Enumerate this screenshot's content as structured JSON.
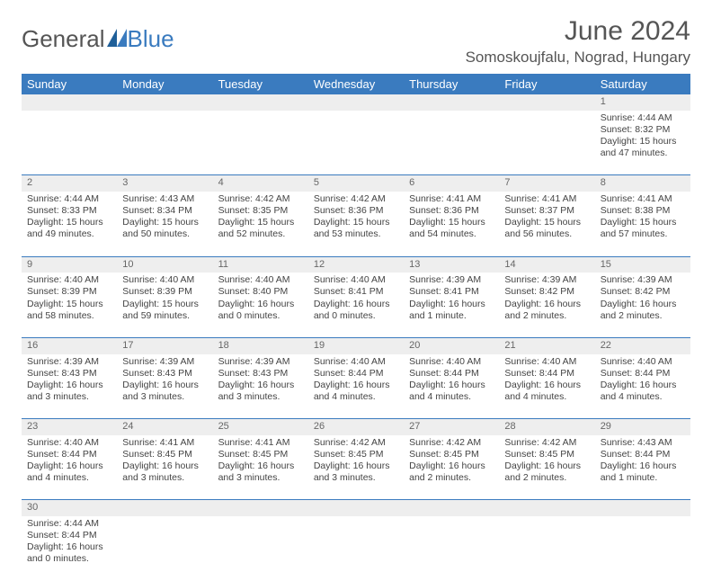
{
  "header": {
    "logo_part1": "General",
    "logo_part2": "Blue",
    "month_title": "June 2024",
    "location": "Somoskoujfalu, Nograd, Hungary"
  },
  "colors": {
    "header_bg": "#3a7bbf",
    "header_text": "#ffffff",
    "daynum_bg": "#eeeeee",
    "cell_border": "#3a7bbf",
    "body_text": "#444444",
    "title_text": "#555555"
  },
  "calendar": {
    "day_headers": [
      "Sunday",
      "Monday",
      "Tuesday",
      "Wednesday",
      "Thursday",
      "Friday",
      "Saturday"
    ],
    "weeks": [
      [
        null,
        null,
        null,
        null,
        null,
        null,
        {
          "n": "1",
          "sr": "4:44 AM",
          "ss": "8:32 PM",
          "dl": "15 hours and 47 minutes."
        }
      ],
      [
        {
          "n": "2",
          "sr": "4:44 AM",
          "ss": "8:33 PM",
          "dl": "15 hours and 49 minutes."
        },
        {
          "n": "3",
          "sr": "4:43 AM",
          "ss": "8:34 PM",
          "dl": "15 hours and 50 minutes."
        },
        {
          "n": "4",
          "sr": "4:42 AM",
          "ss": "8:35 PM",
          "dl": "15 hours and 52 minutes."
        },
        {
          "n": "5",
          "sr": "4:42 AM",
          "ss": "8:36 PM",
          "dl": "15 hours and 53 minutes."
        },
        {
          "n": "6",
          "sr": "4:41 AM",
          "ss": "8:36 PM",
          "dl": "15 hours and 54 minutes."
        },
        {
          "n": "7",
          "sr": "4:41 AM",
          "ss": "8:37 PM",
          "dl": "15 hours and 56 minutes."
        },
        {
          "n": "8",
          "sr": "4:41 AM",
          "ss": "8:38 PM",
          "dl": "15 hours and 57 minutes."
        }
      ],
      [
        {
          "n": "9",
          "sr": "4:40 AM",
          "ss": "8:39 PM",
          "dl": "15 hours and 58 minutes."
        },
        {
          "n": "10",
          "sr": "4:40 AM",
          "ss": "8:39 PM",
          "dl": "15 hours and 59 minutes."
        },
        {
          "n": "11",
          "sr": "4:40 AM",
          "ss": "8:40 PM",
          "dl": "16 hours and 0 minutes."
        },
        {
          "n": "12",
          "sr": "4:40 AM",
          "ss": "8:41 PM",
          "dl": "16 hours and 0 minutes."
        },
        {
          "n": "13",
          "sr": "4:39 AM",
          "ss": "8:41 PM",
          "dl": "16 hours and 1 minute."
        },
        {
          "n": "14",
          "sr": "4:39 AM",
          "ss": "8:42 PM",
          "dl": "16 hours and 2 minutes."
        },
        {
          "n": "15",
          "sr": "4:39 AM",
          "ss": "8:42 PM",
          "dl": "16 hours and 2 minutes."
        }
      ],
      [
        {
          "n": "16",
          "sr": "4:39 AM",
          "ss": "8:43 PM",
          "dl": "16 hours and 3 minutes."
        },
        {
          "n": "17",
          "sr": "4:39 AM",
          "ss": "8:43 PM",
          "dl": "16 hours and 3 minutes."
        },
        {
          "n": "18",
          "sr": "4:39 AM",
          "ss": "8:43 PM",
          "dl": "16 hours and 3 minutes."
        },
        {
          "n": "19",
          "sr": "4:40 AM",
          "ss": "8:44 PM",
          "dl": "16 hours and 4 minutes."
        },
        {
          "n": "20",
          "sr": "4:40 AM",
          "ss": "8:44 PM",
          "dl": "16 hours and 4 minutes."
        },
        {
          "n": "21",
          "sr": "4:40 AM",
          "ss": "8:44 PM",
          "dl": "16 hours and 4 minutes."
        },
        {
          "n": "22",
          "sr": "4:40 AM",
          "ss": "8:44 PM",
          "dl": "16 hours and 4 minutes."
        }
      ],
      [
        {
          "n": "23",
          "sr": "4:40 AM",
          "ss": "8:44 PM",
          "dl": "16 hours and 4 minutes."
        },
        {
          "n": "24",
          "sr": "4:41 AM",
          "ss": "8:45 PM",
          "dl": "16 hours and 3 minutes."
        },
        {
          "n": "25",
          "sr": "4:41 AM",
          "ss": "8:45 PM",
          "dl": "16 hours and 3 minutes."
        },
        {
          "n": "26",
          "sr": "4:42 AM",
          "ss": "8:45 PM",
          "dl": "16 hours and 3 minutes."
        },
        {
          "n": "27",
          "sr": "4:42 AM",
          "ss": "8:45 PM",
          "dl": "16 hours and 2 minutes."
        },
        {
          "n": "28",
          "sr": "4:42 AM",
          "ss": "8:45 PM",
          "dl": "16 hours and 2 minutes."
        },
        {
          "n": "29",
          "sr": "4:43 AM",
          "ss": "8:44 PM",
          "dl": "16 hours and 1 minute."
        }
      ],
      [
        {
          "n": "30",
          "sr": "4:44 AM",
          "ss": "8:44 PM",
          "dl": "16 hours and 0 minutes."
        },
        null,
        null,
        null,
        null,
        null,
        null
      ]
    ]
  },
  "labels": {
    "sunrise_prefix": "Sunrise: ",
    "sunset_prefix": "Sunset: ",
    "daylight_prefix": "Daylight: "
  }
}
